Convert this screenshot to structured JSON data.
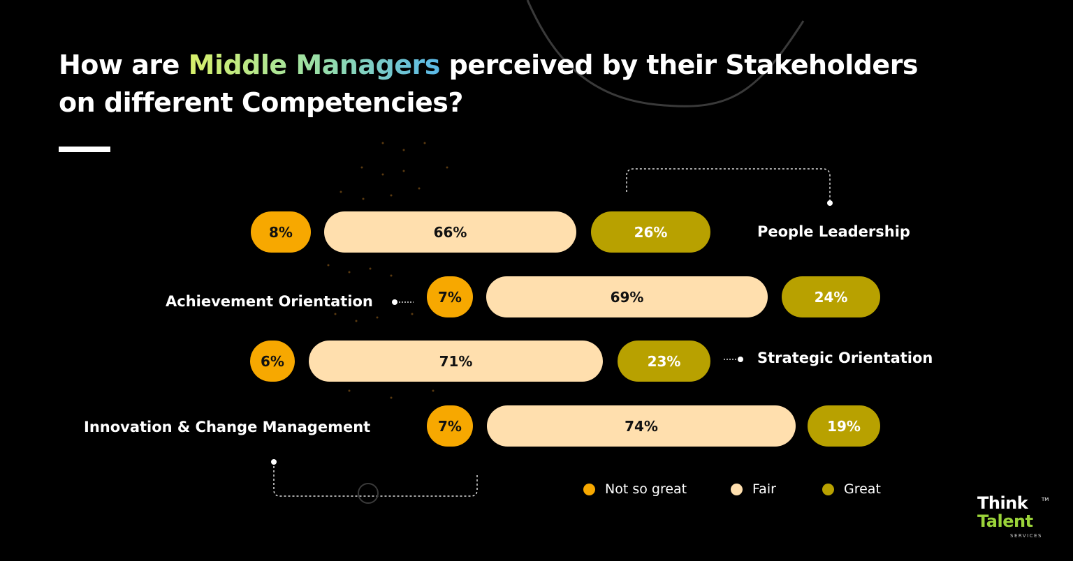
{
  "title": {
    "part1": "How are ",
    "highlight": "Middle Managers",
    "part2": " perceived by their Stakeholders",
    "line2": "on different Competencies?"
  },
  "colors": {
    "not_so_great": "#f7a800",
    "fair": "#ffdfae",
    "great": "#b8a100",
    "background": "#000000"
  },
  "legend": [
    {
      "label": "Not so great",
      "color": "#f7a800"
    },
    {
      "label": "Fair",
      "color": "#ffdfae"
    },
    {
      "label": "Great",
      "color": "#b8a100"
    }
  ],
  "chart_data": {
    "type": "bar",
    "stacked": true,
    "categories": [
      "People Leadership",
      "Achievement Orientation",
      "Strategic Orientation",
      "Innovation & Change Management"
    ],
    "series": [
      {
        "name": "Not so great",
        "values": [
          8,
          7,
          6,
          7
        ],
        "labels": [
          "8%",
          "7%",
          "6%",
          "7%"
        ]
      },
      {
        "name": "Fair",
        "values": [
          66,
          69,
          71,
          74
        ],
        "labels": [
          "66%",
          "69%",
          "71%",
          "74%"
        ]
      },
      {
        "name": "Great",
        "values": [
          26,
          24,
          23,
          19
        ],
        "labels": [
          "26%",
          "24%",
          "23%",
          "19%"
        ]
      }
    ],
    "title": "How are Middle Managers perceived by their Stakeholders on different Competencies?",
    "legend_position": "bottom-right"
  },
  "logo": {
    "line1": "Think",
    "line2": "Talent",
    "line3": "SERVICES",
    "tm": "TM"
  }
}
